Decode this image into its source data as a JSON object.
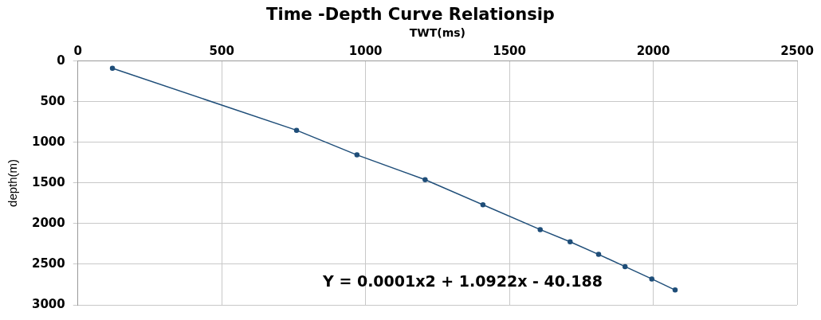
{
  "chart_data": {
    "type": "line",
    "title": "Time -Depth Curve Relationsip",
    "xlabel": "TWT(ms)",
    "ylabel": "depth(m)",
    "x": [
      120,
      760,
      970,
      1207,
      1408,
      1607,
      1711,
      1810,
      1902,
      1995,
      2076
    ],
    "series": [
      {
        "color": "#1f4e79",
        "values": [
          88,
          851,
          1154,
          1459,
          1768,
          2073,
          2223,
          2379,
          2529,
          2681,
          2817
        ]
      }
    ],
    "xlim": [
      0,
      2500
    ],
    "xticks": [
      0,
      500,
      1000,
      1500,
      2000,
      2500
    ],
    "ylim": [
      3000,
      0
    ],
    "yticks": [
      0,
      500,
      1000,
      1500,
      2000,
      2500,
      3000
    ],
    "grid": true,
    "legend": false,
    "marker": "circle",
    "line_style": "solid",
    "annotations": [
      "Y = 0.0001x2 + 1.0922x - 40.188"
    ]
  }
}
